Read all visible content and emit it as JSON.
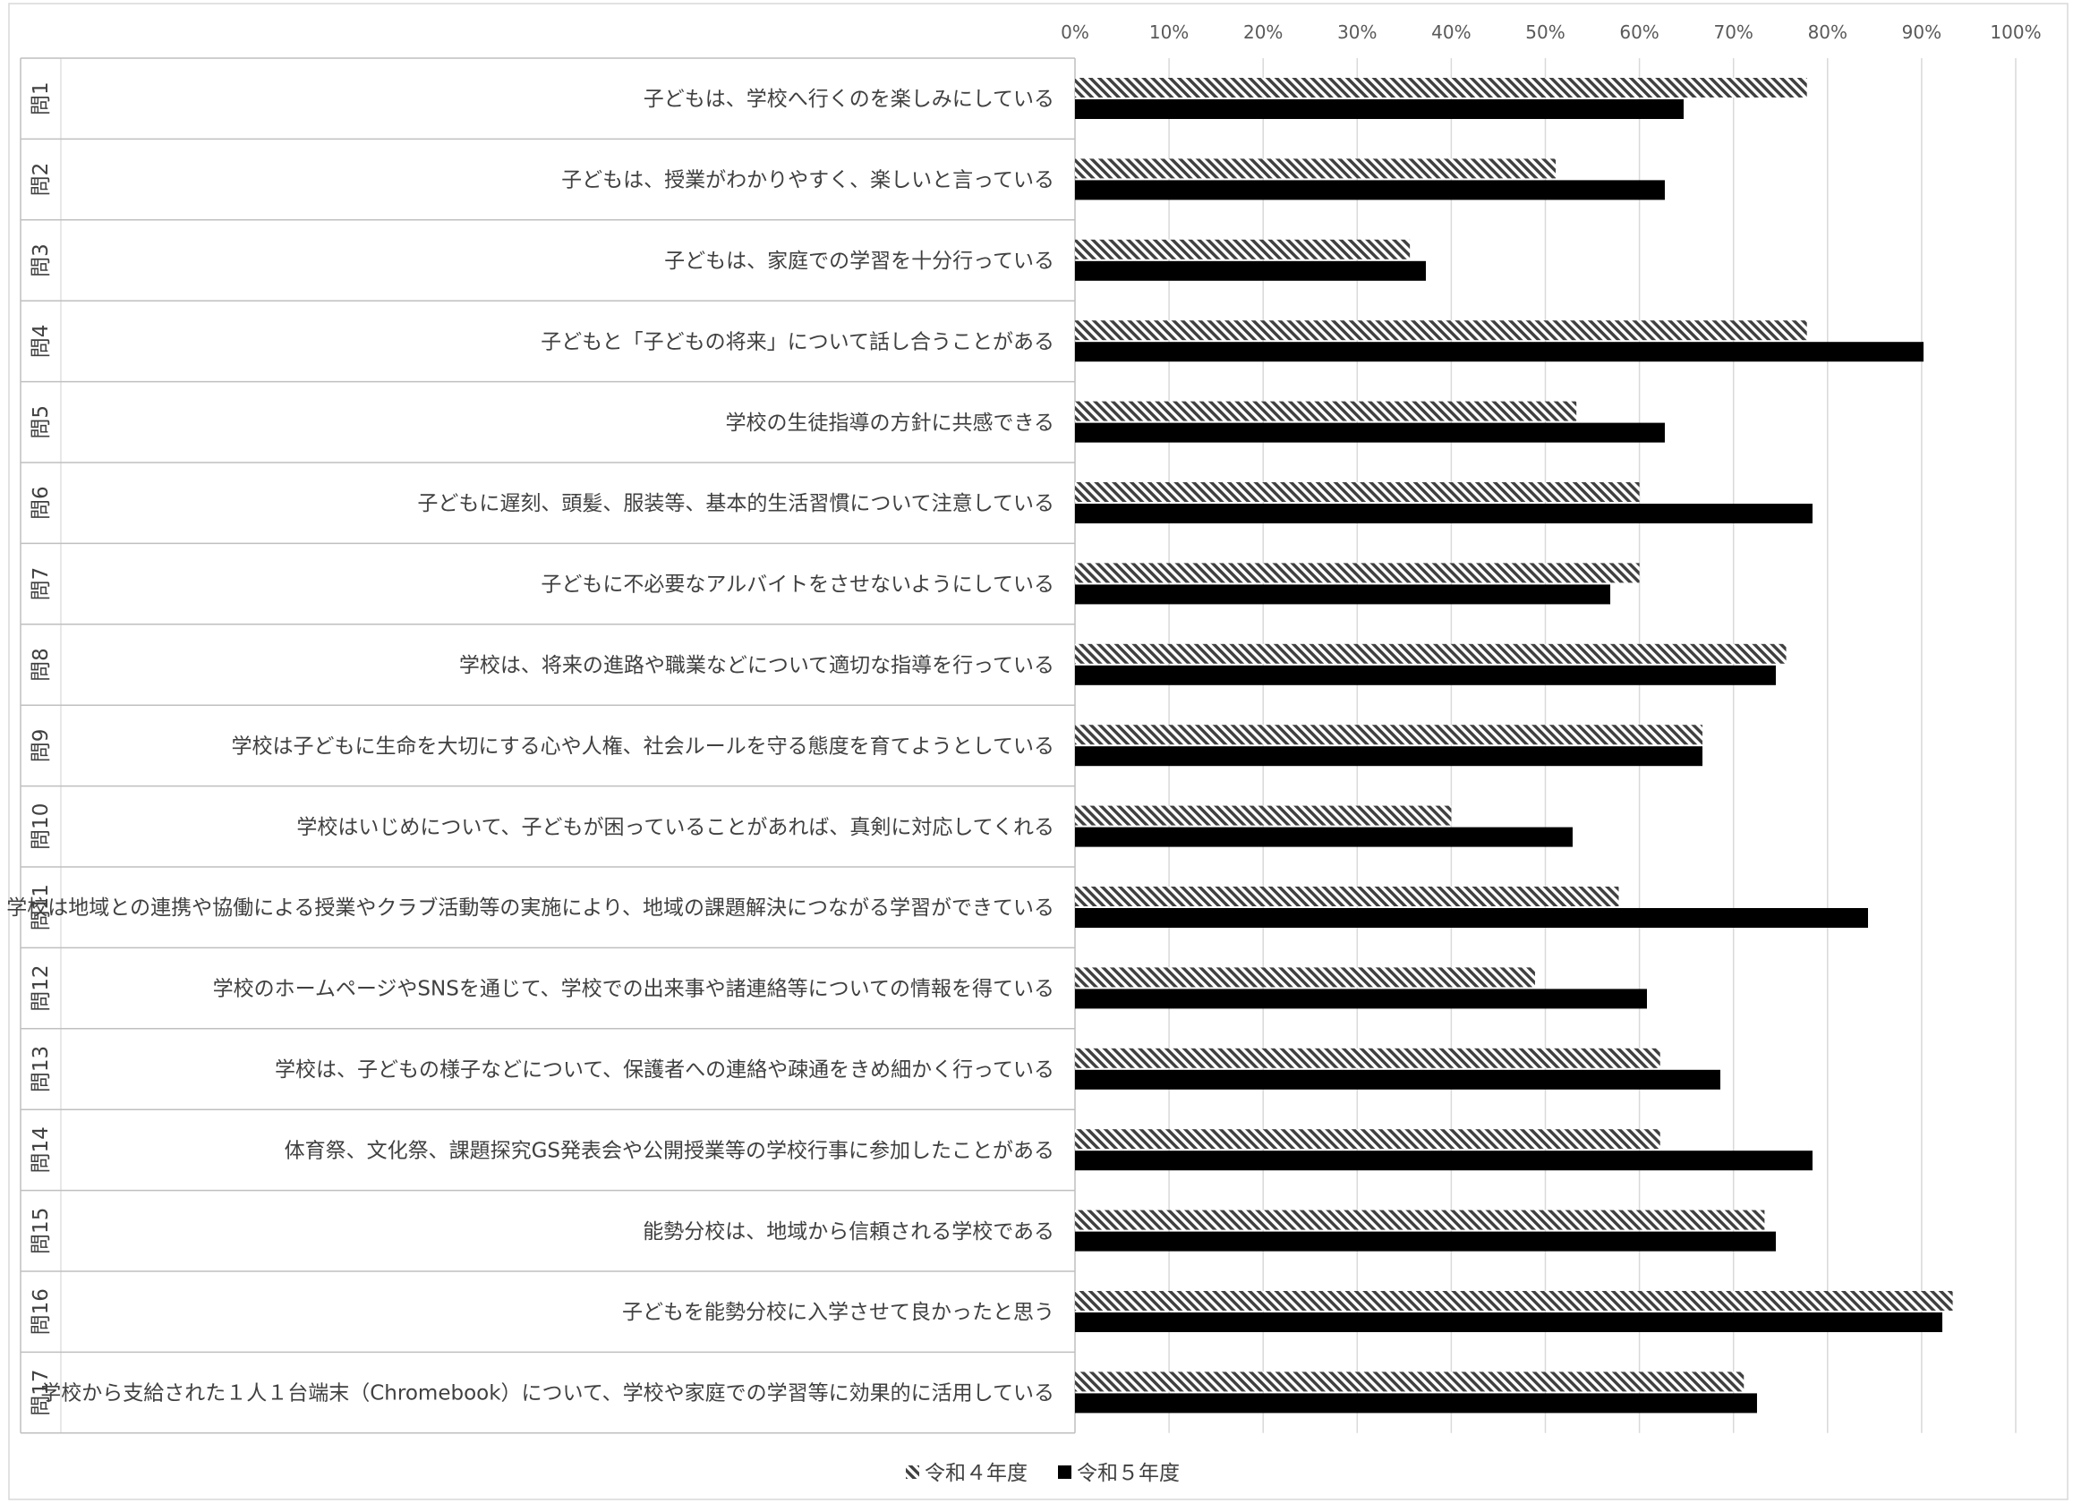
{
  "chart_data": {
    "type": "bar",
    "orientation": "horizontal",
    "xlim": [
      0,
      100
    ],
    "x_ticks": [
      "0%",
      "10%",
      "20%",
      "30%",
      "40%",
      "50%",
      "60%",
      "70%",
      "80%",
      "90%",
      "100%"
    ],
    "grid": true,
    "legend_position": "bottom",
    "question_labels": [
      "問1",
      "問2",
      "問3",
      "問4",
      "問5",
      "問6",
      "問7",
      "問8",
      "問9",
      "問10",
      "問11",
      "問12",
      "問13",
      "問14",
      "問15",
      "問16",
      "問17"
    ],
    "categories": [
      "子どもは、学校へ行くのを楽しみにしている",
      "子どもは、授業がわかりやすく、楽しいと言っている",
      "子どもは、家庭での学習を十分行っている",
      "子どもと「子どもの将来」について話し合うことがある",
      "学校の生徒指導の方針に共感できる",
      "子どもに遅刻、頭髪、服装等、基本的生活習慣について注意している",
      "子どもに不必要なアルバイトをさせないようにしている",
      "学校は、将来の進路や職業などについて適切な指導を行っている",
      "学校は子どもに生命を大切にする心や人権、社会ルールを守る態度を育てようとしている",
      "学校はいじめについて、子どもが困っていることがあれば、真剣に対応してくれる",
      "学校は地域との連携や協働による授業やクラブ活動等の実施により、地域の課題解決につながる学習ができている",
      "学校のホームページやSNSを通じて、学校での出来事や諸連絡等についての情報を得ている",
      "学校は、子どもの様子などについて、保護者への連絡や疎通をきめ細かく行っている",
      "体育祭、文化祭、課題探究GS発表会や公開授業等の学校行事に参加したことがある",
      "能勢分校は、地域から信頼される学校である",
      "子どもを能勢分校に入学させて良かったと思う",
      "学校から支給された１人１台端末（Chromebook）について、学校や家庭での学習等に効果的に活用している"
    ],
    "series": [
      {
        "name": "令和４年度",
        "pattern": "hatched",
        "color": "#404040",
        "values": [
          77.8,
          51.1,
          35.6,
          77.8,
          53.3,
          60.0,
          60.0,
          75.6,
          66.7,
          40.0,
          57.8,
          48.9,
          62.2,
          62.2,
          73.3,
          93.3,
          71.1
        ]
      },
      {
        "name": "令和５年度",
        "pattern": "solid",
        "color": "#000000",
        "values": [
          64.7,
          62.7,
          37.3,
          90.2,
          62.7,
          78.4,
          56.9,
          74.5,
          66.7,
          52.9,
          84.3,
          60.8,
          68.6,
          78.4,
          74.5,
          92.2,
          72.5
        ]
      }
    ]
  }
}
